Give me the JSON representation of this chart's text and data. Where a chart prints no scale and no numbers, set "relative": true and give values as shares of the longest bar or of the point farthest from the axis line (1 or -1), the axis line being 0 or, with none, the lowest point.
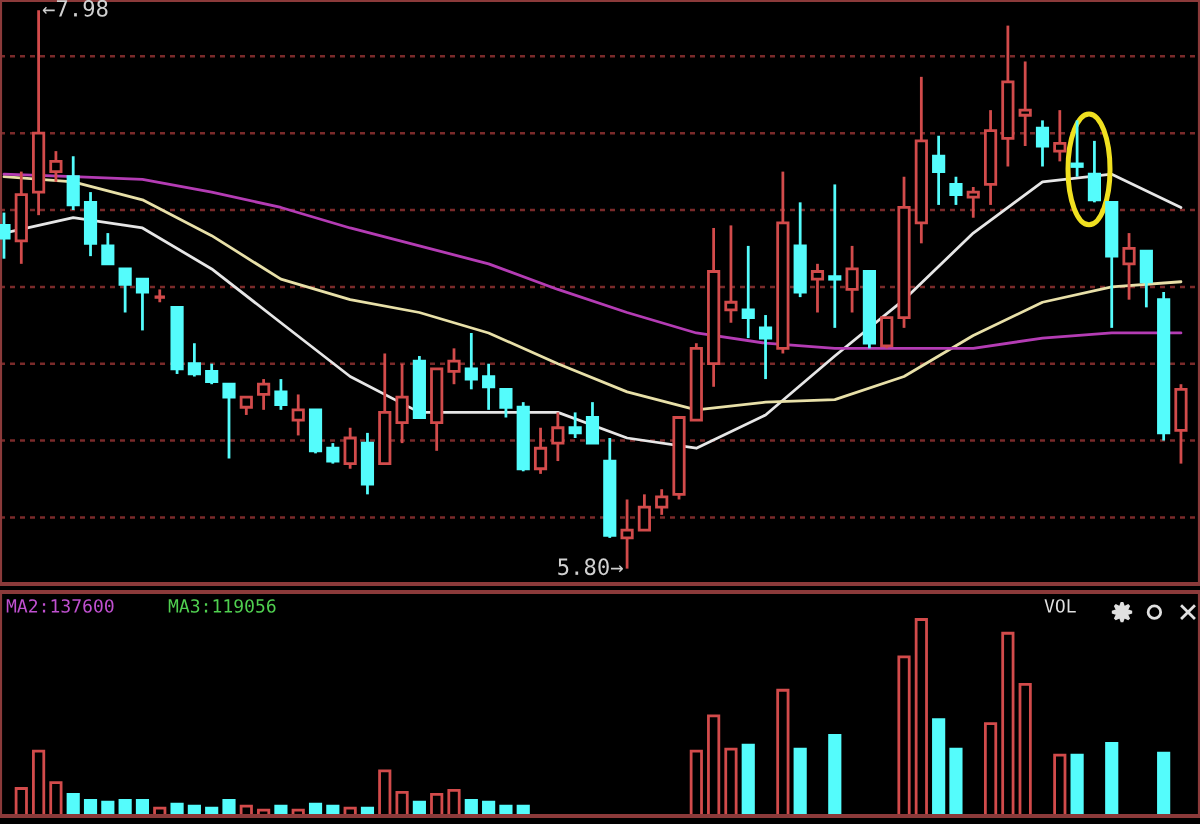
{
  "chart_data": [
    {
      "type": "candlestick",
      "categories": [
        null,
        null,
        null,
        null,
        null,
        null,
        null,
        null,
        null,
        null,
        null,
        null,
        null,
        null,
        null,
        null,
        null,
        null,
        null,
        null,
        null,
        null,
        null,
        null,
        null,
        null,
        null,
        null,
        null,
        null,
        null,
        null,
        null,
        null,
        null,
        null,
        null,
        null,
        null,
        null,
        null,
        null,
        null,
        null,
        null,
        null,
        null,
        null,
        null,
        null,
        null,
        null,
        null,
        null,
        null,
        null,
        null,
        null,
        null,
        null,
        null,
        null,
        null,
        null,
        null,
        null,
        null,
        null,
        null
      ],
      "ohlc": [
        [
          7.14,
          7.19,
          7.01,
          7.09
        ],
        [
          7.08,
          7.35,
          6.99,
          7.26
        ],
        [
          7.27,
          7.98,
          7.18,
          7.5
        ],
        [
          7.35,
          7.43,
          7.31,
          7.39
        ],
        [
          7.33,
          7.41,
          7.2,
          7.22
        ],
        [
          7.23,
          7.27,
          7.02,
          7.07
        ],
        [
          7.06,
          7.11,
          6.99,
          6.99
        ],
        [
          6.97,
          6.97,
          6.8,
          6.91
        ],
        [
          6.93,
          6.93,
          6.73,
          6.88
        ],
        [
          6.86,
          6.89,
          6.84,
          6.86
        ],
        [
          6.82,
          6.82,
          6.56,
          6.58
        ],
        [
          6.6,
          6.68,
          6.55,
          6.56
        ],
        [
          6.57,
          6.6,
          6.52,
          6.53
        ],
        [
          6.52,
          6.52,
          6.23,
          6.47
        ],
        [
          6.43,
          6.47,
          6.4,
          6.47
        ],
        [
          6.48,
          6.54,
          6.42,
          6.52
        ],
        [
          6.49,
          6.54,
          6.42,
          6.44
        ],
        [
          6.38,
          6.48,
          6.32,
          6.42
        ],
        [
          6.42,
          6.42,
          6.25,
          6.26
        ],
        [
          6.27,
          6.29,
          6.21,
          6.22
        ],
        [
          6.21,
          6.35,
          6.19,
          6.31
        ],
        [
          6.29,
          6.33,
          6.09,
          6.13
        ],
        [
          6.21,
          6.64,
          6.21,
          6.41
        ],
        [
          6.37,
          6.6,
          6.29,
          6.47
        ],
        [
          6.61,
          6.63,
          6.39,
          6.39
        ],
        [
          6.37,
          6.58,
          6.26,
          6.58
        ],
        [
          6.57,
          6.66,
          6.52,
          6.61
        ],
        [
          6.58,
          6.72,
          6.5,
          6.54
        ],
        [
          6.55,
          6.6,
          6.42,
          6.51
        ],
        [
          6.5,
          6.5,
          6.39,
          6.43
        ],
        [
          6.43,
          6.45,
          6.18,
          6.19
        ],
        [
          6.19,
          6.35,
          6.17,
          6.27
        ],
        [
          6.29,
          6.41,
          6.22,
          6.35
        ],
        [
          6.35,
          6.41,
          6.31,
          6.33
        ],
        [
          6.39,
          6.45,
          6.29,
          6.29
        ],
        [
          6.22,
          6.31,
          5.92,
          5.93
        ],
        [
          5.92,
          6.07,
          5.8,
          5.95
        ],
        [
          5.95,
          6.09,
          5.95,
          6.04
        ],
        [
          6.04,
          6.11,
          6.01,
          6.08
        ],
        [
          6.09,
          6.39,
          6.07,
          6.39
        ],
        [
          6.38,
          6.68,
          6.38,
          6.66
        ],
        [
          6.6,
          7.13,
          6.51,
          6.96
        ],
        [
          6.81,
          7.14,
          6.76,
          6.84
        ],
        [
          6.81,
          7.06,
          6.7,
          6.78
        ],
        [
          6.74,
          6.79,
          6.54,
          6.7
        ],
        [
          6.66,
          7.35,
          6.64,
          7.15
        ],
        [
          7.06,
          7.23,
          6.86,
          6.88
        ],
        [
          6.93,
          6.99,
          6.8,
          6.96
        ],
        [
          6.94,
          7.3,
          6.74,
          6.93
        ],
        [
          6.89,
          7.06,
          6.8,
          6.97
        ],
        [
          6.96,
          6.96,
          6.66,
          6.68
        ],
        [
          6.67,
          6.78,
          6.66,
          6.78
        ],
        [
          6.78,
          7.33,
          6.74,
          7.21
        ],
        [
          7.15,
          7.72,
          7.07,
          7.47
        ],
        [
          7.41,
          7.49,
          7.22,
          7.35
        ],
        [
          7.3,
          7.33,
          7.22,
          7.26
        ],
        [
          7.25,
          7.29,
          7.17,
          7.27
        ],
        [
          7.3,
          7.59,
          7.22,
          7.51
        ],
        [
          7.48,
          7.92,
          7.37,
          7.7
        ],
        [
          7.57,
          7.78,
          7.45,
          7.59
        ],
        [
          7.52,
          7.55,
          7.37,
          7.45
        ],
        [
          7.43,
          7.59,
          7.39,
          7.46
        ],
        [
          7.38,
          7.55,
          7.33,
          7.37
        ],
        [
          7.34,
          7.47,
          7.23,
          7.24
        ],
        [
          7.23,
          7.23,
          6.74,
          7.02
        ],
        [
          6.99,
          7.11,
          6.85,
          7.05
        ],
        [
          7.04,
          7.04,
          6.82,
          6.92
        ],
        [
          6.85,
          6.88,
          6.3,
          6.33
        ],
        [
          6.34,
          6.52,
          6.21,
          6.5
        ]
      ],
      "colors": [
        "#54fcfc",
        "#d24b4b",
        "#d24b4b",
        "#d24b4b",
        "#54fcfc",
        "#54fcfc",
        "#54fcfc",
        "#54fcfc",
        "#54fcfc",
        "#d24b4b",
        "#54fcfc",
        "#54fcfc",
        "#54fcfc",
        "#54fcfc",
        "#d24b4b",
        "#d24b4b",
        "#54fcfc",
        "#d24b4b",
        "#54fcfc",
        "#54fcfc",
        "#d24b4b",
        "#54fcfc",
        "#d24b4b",
        "#d24b4b",
        "#54fcfc",
        "#d24b4b",
        "#d24b4b",
        "#54fcfc",
        "#54fcfc",
        "#54fcfc",
        "#54fcfc",
        "#d24b4b",
        "#d24b4b",
        "#54fcfc",
        "#54fcfc",
        "#54fcfc",
        "#d24b4b",
        "#d24b4b",
        "#d24b4b",
        "#d24b4b",
        "#d24b4b",
        "#d24b4b",
        "#d24b4b",
        "#54fcfc",
        "#54fcfc",
        "#d24b4b",
        "#54fcfc",
        "#d24b4b",
        "#54fcfc",
        "#d24b4b",
        "#54fcfc",
        "#d24b4b",
        "#d24b4b",
        "#d24b4b",
        "#54fcfc",
        "#54fcfc",
        "#d24b4b",
        "#d24b4b",
        "#d24b4b",
        "#d24b4b",
        "#54fcfc",
        "#d24b4b",
        "#54fcfc",
        "#54fcfc",
        "#54fcfc",
        "#d24b4b",
        "#54fcfc",
        "#54fcfc",
        "#d24b4b"
      ],
      "series": [
        {
          "type": "line",
          "color": "#e6e6e6",
          "values": [
            7.11,
            null,
            null,
            null,
            7.17,
            null,
            null,
            null,
            7.13,
            null,
            null,
            null,
            6.97,
            null,
            null,
            null,
            6.76,
            null,
            null,
            null,
            6.55,
            null,
            null,
            null,
            6.41,
            null,
            null,
            null,
            6.41,
            null,
            null,
            null,
            6.41,
            null,
            null,
            null,
            6.31,
            null,
            null,
            null,
            6.27,
            null,
            null,
            null,
            6.4,
            null,
            null,
            null,
            6.63,
            null,
            null,
            null,
            6.85,
            null,
            null,
            null,
            7.11,
            null,
            null,
            null,
            7.31,
            null,
            null,
            null,
            7.34,
            null,
            null,
            null,
            7.21
          ]
        },
        {
          "type": "line",
          "color": "#e8e0a8",
          "values": [
            7.33,
            null,
            null,
            null,
            7.31,
            null,
            null,
            null,
            7.24,
            null,
            null,
            null,
            7.1,
            null,
            null,
            null,
            6.93,
            null,
            null,
            null,
            6.85,
            null,
            null,
            null,
            6.8,
            null,
            null,
            null,
            6.72,
            null,
            null,
            null,
            6.6,
            null,
            null,
            null,
            6.49,
            null,
            null,
            null,
            6.42,
            null,
            null,
            null,
            6.45,
            null,
            null,
            null,
            6.46,
            null,
            null,
            null,
            6.55,
            null,
            null,
            null,
            6.71,
            null,
            null,
            null,
            6.84,
            null,
            null,
            null,
            6.9,
            null,
            null,
            null,
            6.92
          ]
        },
        {
          "type": "line",
          "color": "#b43cb4",
          "values": [
            7.34,
            null,
            null,
            null,
            7.33,
            null,
            null,
            null,
            7.32,
            null,
            null,
            null,
            7.27,
            null,
            null,
            null,
            7.21,
            null,
            null,
            null,
            7.13,
            null,
            null,
            null,
            7.06,
            null,
            null,
            null,
            6.99,
            null,
            null,
            null,
            6.89,
            null,
            null,
            null,
            6.8,
            null,
            null,
            null,
            6.72,
            null,
            null,
            null,
            6.68,
            null,
            null,
            null,
            6.66,
            null,
            null,
            null,
            6.66,
            null,
            null,
            null,
            6.66,
            null,
            null,
            null,
            6.7,
            null,
            null,
            null,
            6.72,
            null,
            null,
            null,
            6.72
          ]
        }
      ],
      "ylim": [
        5.74,
        8.02
      ],
      "yticks": [
        {
          "value": 6.0,
          "label": null
        },
        {
          "value": 6.3,
          "label": null
        },
        {
          "value": 6.6,
          "label": null
        },
        {
          "value": 6.9,
          "label": null
        },
        {
          "value": 7.2,
          "label": null
        },
        {
          "value": 7.5,
          "label": null
        },
        {
          "value": 7.8,
          "label": null
        }
      ],
      "grid": "y",
      "annotations": [
        "←7.98",
        "5.80→"
      ]
    },
    {
      "type": "bar",
      "relative": true,
      "categories": [
        null,
        null,
        null,
        null,
        null,
        null,
        null,
        null,
        null,
        null,
        null,
        null,
        null,
        null,
        null,
        null,
        null,
        null,
        null,
        null,
        null,
        null,
        null,
        null,
        null,
        null,
        null,
        null,
        null,
        null,
        null,
        null,
        null,
        null,
        null,
        null,
        null,
        null,
        null,
        null,
        null,
        null,
        null,
        null,
        null,
        null,
        null,
        null,
        null,
        null,
        null,
        null,
        null,
        null,
        null,
        null,
        null,
        null,
        null,
        null,
        null,
        null,
        null,
        null,
        null,
        null,
        null,
        null,
        null
      ],
      "values": [
        null,
        0.14,
        0.33,
        0.17,
        0.11,
        0.08,
        0.07,
        0.08,
        0.08,
        0.04,
        0.06,
        0.05,
        0.04,
        0.08,
        0.05,
        0.03,
        0.05,
        0.03,
        0.06,
        0.05,
        0.04,
        0.04,
        0.23,
        0.12,
        0.07,
        0.11,
        0.13,
        0.08,
        0.07,
        0.05,
        0.05,
        null,
        null,
        null,
        null,
        null,
        null,
        null,
        null,
        null,
        0.33,
        0.51,
        0.34,
        0.36,
        null,
        0.64,
        0.34,
        null,
        0.41,
        null,
        null,
        null,
        0.81,
        1,
        0.49,
        0.34,
        null,
        0.47,
        0.93,
        0.67,
        null,
        0.31,
        0.31,
        null,
        0.37,
        null,
        null,
        0.32,
        null
      ],
      "colors": [
        "#54fcfc",
        "#d24b4b",
        "#d24b4b",
        "#d24b4b",
        "#54fcfc",
        "#54fcfc",
        "#54fcfc",
        "#54fcfc",
        "#54fcfc",
        "#d24b4b",
        "#54fcfc",
        "#54fcfc",
        "#54fcfc",
        "#54fcfc",
        "#d24b4b",
        "#d24b4b",
        "#54fcfc",
        "#d24b4b",
        "#54fcfc",
        "#54fcfc",
        "#d24b4b",
        "#54fcfc",
        "#d24b4b",
        "#d24b4b",
        "#54fcfc",
        "#d24b4b",
        "#d24b4b",
        "#54fcfc",
        "#54fcfc",
        "#54fcfc",
        "#54fcfc",
        "#d24b4b",
        "#d24b4b",
        "#54fcfc",
        "#54fcfc",
        "#54fcfc",
        "#d24b4b",
        "#d24b4b",
        "#d24b4b",
        "#d24b4b",
        "#d24b4b",
        "#d24b4b",
        "#d24b4b",
        "#54fcfc",
        "#54fcfc",
        "#d24b4b",
        "#54fcfc",
        "#d24b4b",
        "#54fcfc",
        "#d24b4b",
        "#54fcfc",
        "#d24b4b",
        "#d24b4b",
        "#d24b4b",
        "#54fcfc",
        "#54fcfc",
        "#d24b4b",
        "#d24b4b",
        "#d24b4b",
        "#d24b4b",
        "#54fcfc",
        "#d24b4b",
        "#54fcfc",
        "#54fcfc",
        "#54fcfc",
        "#d24b4b",
        "#54fcfc",
        "#54fcfc",
        "#d24b4b"
      ],
      "annotations": [
        "MA2:137600",
        "MA3:119056",
        "VOL"
      ]
    }
  ]
}
